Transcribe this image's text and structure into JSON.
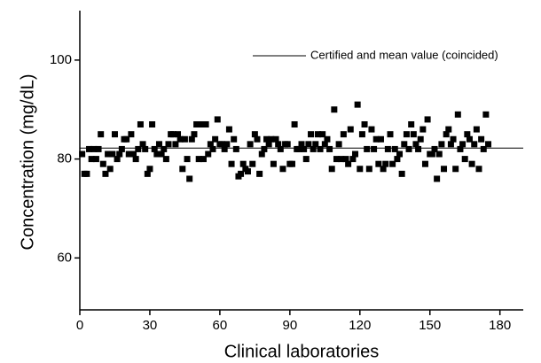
{
  "chart_data": {
    "type": "scatter",
    "x_label": "Clinical laboratories",
    "y_label": "Concentration (mg/dL)",
    "reference_line": {
      "name": "Certified and mean value (coincided)",
      "value": 82.2,
      "color": "#000000"
    },
    "xlim": [
      0,
      190
    ],
    "ylim": [
      49.5,
      110
    ],
    "xticks": [
      0,
      30,
      60,
      90,
      120,
      150,
      180
    ],
    "yticks": [
      60,
      80,
      100
    ],
    "grid": false,
    "marker_color": "#000000",
    "x": [
      1,
      2,
      3,
      4,
      5,
      6,
      7,
      8,
      9,
      10,
      11,
      12,
      13,
      14,
      15,
      16,
      17,
      18,
      19,
      20,
      21,
      22,
      23,
      24,
      25,
      26,
      27,
      28,
      29,
      30,
      31,
      32,
      33,
      34,
      35,
      36,
      37,
      38,
      39,
      40,
      41,
      42,
      43,
      44,
      45,
      46,
      47,
      48,
      49,
      50,
      51,
      52,
      53,
      54,
      55,
      56,
      57,
      58,
      59,
      60,
      61,
      62,
      63,
      64,
      65,
      66,
      67,
      68,
      69,
      70,
      71,
      72,
      73,
      74,
      75,
      76,
      77,
      78,
      79,
      80,
      81,
      82,
      83,
      84,
      85,
      86,
      87,
      88,
      89,
      90,
      91,
      92,
      93,
      94,
      95,
      96,
      97,
      98,
      99,
      100,
      101,
      102,
      103,
      104,
      105,
      106,
      107,
      108,
      109,
      110,
      111,
      112,
      113,
      114,
      115,
      116,
      117,
      118,
      119,
      120,
      121,
      122,
      123,
      124,
      125,
      126,
      127,
      128,
      129,
      130,
      131,
      132,
      133,
      134,
      135,
      136,
      137,
      138,
      139,
      140,
      141,
      142,
      143,
      144,
      145,
      146,
      147,
      148,
      149,
      150,
      151,
      152,
      153,
      154,
      155,
      156,
      157,
      158,
      159,
      160,
      161,
      162,
      163,
      164,
      165,
      166,
      167,
      168,
      169,
      170,
      171,
      172,
      173,
      174,
      175
    ],
    "values": [
      81,
      77,
      77,
      82,
      80,
      82,
      80,
      82,
      85,
      79,
      77,
      81,
      78,
      81,
      85,
      80,
      81,
      82,
      84,
      84,
      81,
      85,
      81,
      80,
      82,
      87,
      83,
      82,
      77,
      78,
      87,
      82,
      81,
      83,
      81,
      82,
      80,
      83,
      85,
      85,
      83,
      85,
      84,
      78,
      84,
      80,
      76,
      84,
      85,
      87,
      80,
      87,
      80,
      87,
      81,
      83,
      82,
      84,
      88,
      83,
      83,
      82,
      83,
      86,
      79,
      84,
      82,
      76.5,
      77,
      79,
      78,
      77.5,
      83,
      79,
      85,
      84,
      77,
      81,
      82,
      84,
      83,
      84,
      79,
      84,
      83,
      82,
      78,
      83,
      83,
      79,
      79,
      87,
      82,
      82,
      83,
      82,
      80,
      83,
      85,
      82,
      83,
      85,
      82,
      85,
      83,
      84,
      82,
      78,
      90,
      80,
      83,
      80,
      85,
      80,
      79,
      86,
      80,
      81,
      91,
      78,
      85,
      87,
      82,
      78,
      86,
      82,
      84,
      79,
      84,
      78,
      79,
      82,
      85,
      79,
      82,
      80,
      81,
      77,
      83,
      85,
      82,
      87,
      85,
      83,
      82,
      84,
      86,
      79,
      88,
      81,
      81,
      82,
      76,
      81,
      83,
      78,
      85,
      86,
      83,
      84,
      78,
      89,
      82,
      83,
      80,
      85,
      84,
      79,
      83,
      86,
      78,
      84,
      82,
      89,
      83
    ]
  }
}
